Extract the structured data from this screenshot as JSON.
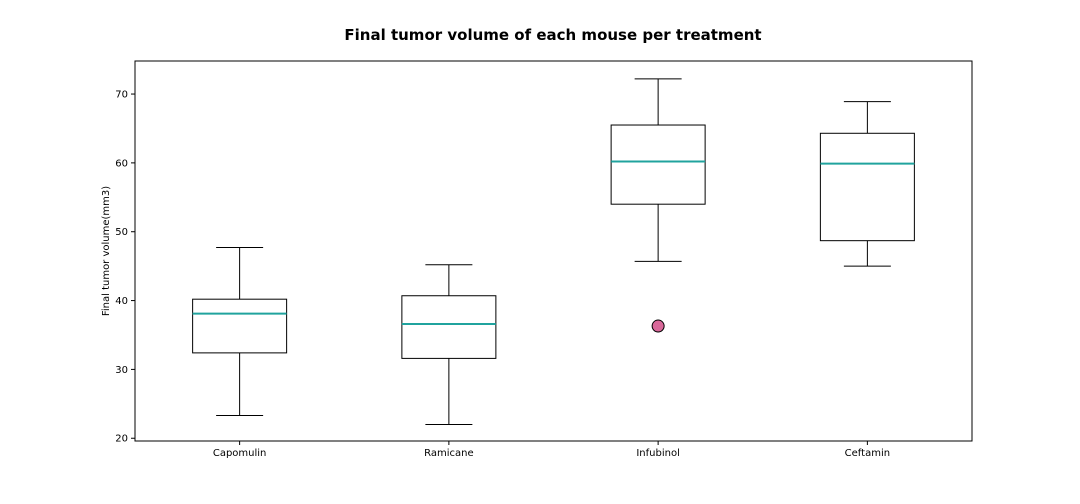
{
  "chart_data": {
    "type": "box",
    "title": "Final tumor volume of each mouse per treatment",
    "xlabel": "",
    "ylabel": "Final tumor volume(mm3)",
    "ylim": [
      19.6,
      74.8
    ],
    "yticks": [
      20,
      30,
      40,
      50,
      60,
      70
    ],
    "grid": false,
    "colors": {
      "median": "#20a39e",
      "outlier_fill": "#d9689a",
      "box_edge": "#000000"
    },
    "categories": [
      "Capomulin",
      "Ramicane",
      "Infubinol",
      "Ceftamin"
    ],
    "boxes": [
      {
        "name": "Capomulin",
        "whisker_low": 23.3,
        "q1": 32.4,
        "median": 38.1,
        "q3": 40.2,
        "whisker_high": 47.7,
        "outliers": []
      },
      {
        "name": "Ramicane",
        "whisker_low": 22.0,
        "q1": 31.6,
        "median": 36.6,
        "q3": 40.7,
        "whisker_high": 45.2,
        "outliers": []
      },
      {
        "name": "Infubinol",
        "whisker_low": 45.7,
        "q1": 54.0,
        "median": 60.2,
        "q3": 65.5,
        "whisker_high": 72.2,
        "outliers": [
          36.3
        ]
      },
      {
        "name": "Ceftamin",
        "whisker_low": 45.0,
        "q1": 48.7,
        "median": 59.9,
        "q3": 64.3,
        "whisker_high": 68.9,
        "outliers": []
      }
    ]
  }
}
